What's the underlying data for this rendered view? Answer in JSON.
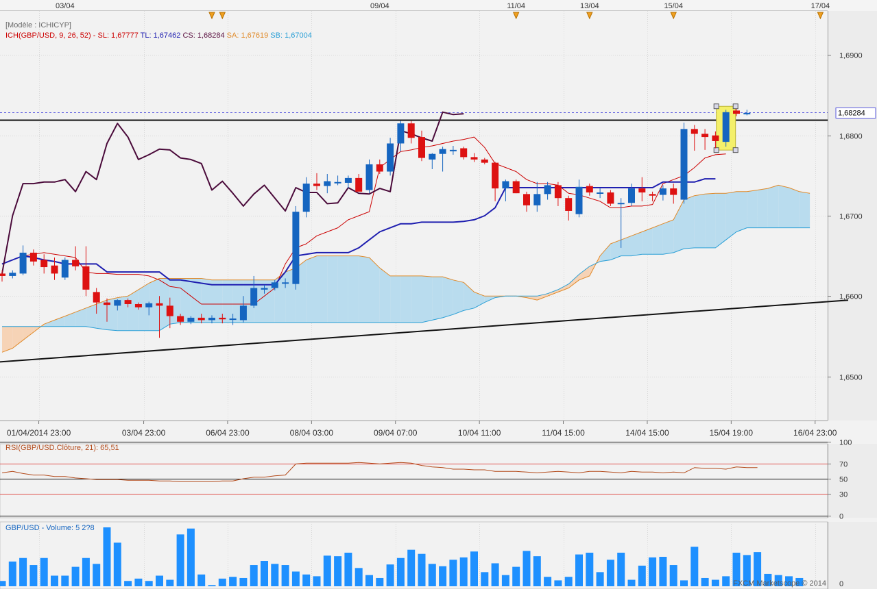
{
  "top_dates": [
    {
      "label": "03/04",
      "slot": 6
    },
    {
      "label": "09/04",
      "slot": 36
    },
    {
      "label": "11/04",
      "slot": 49
    },
    {
      "label": "13/04",
      "slot": 56
    },
    {
      "label": "15/04",
      "slot": 64
    },
    {
      "label": "17/04",
      "slot": 78
    }
  ],
  "event_marker_slots": [
    20,
    21,
    49,
    56,
    64,
    78
  ],
  "main_panel": {
    "model_label": "[Modèle : ICHICYP]",
    "legend": [
      {
        "text": "ICH(GBP/USD, 9, 26, 52) -",
        "color": "#cc0000"
      },
      {
        "text": "SL: 1,67777",
        "color": "#cc0000"
      },
      {
        "text": "TL: 1,67462",
        "color": "#1f1fb0"
      },
      {
        "text": "CS: 1,68284",
        "color": "#5a1040"
      },
      {
        "text": "SA: 1,67619",
        "color": "#e08a2a"
      },
      {
        "text": "SB: 1,67004",
        "color": "#2a9fd6"
      }
    ],
    "price_ticks": [
      "1,6900",
      "1,6800",
      "1,6700",
      "1,6600",
      "1,6500"
    ],
    "price_tick_values": [
      1.69,
      1.68,
      1.67,
      1.66,
      1.65
    ],
    "y_range": [
      1.6445,
      1.6955
    ],
    "last_price_label": "1,68284",
    "last_price": 1.68284
  },
  "x_axis_labels": [
    {
      "label": "01/04/2014 23:00",
      "slot": 3.5
    },
    {
      "label": "03/04 23:00",
      "slot": 13.5
    },
    {
      "label": "06/04 23:00",
      "slot": 21.5
    },
    {
      "label": "08/04 03:00",
      "slot": 29.5
    },
    {
      "label": "09/04 07:00",
      "slot": 37.5
    },
    {
      "label": "10/04 11:00",
      "slot": 45.5
    },
    {
      "label": "11/04 15:00",
      "slot": 53.5
    },
    {
      "label": "14/04 15:00",
      "slot": 61.5
    },
    {
      "label": "15/04 19:00",
      "slot": 69.5
    },
    {
      "label": "16/04 23:00",
      "slot": 77.5
    }
  ],
  "rsi_panel": {
    "title": "RSI(GBP/USD.Clôture, 21): 65,51",
    "ticks": [
      "100",
      "70",
      "50",
      "30",
      "0"
    ],
    "tick_values": [
      100,
      70,
      50,
      30,
      0
    ]
  },
  "volume_panel": {
    "title": "GBP/USD - Volume: 5 2?8",
    "ticks": [
      "0"
    ]
  },
  "watermark": "FXCM Marketscope © 2014",
  "colors": {
    "bull": "#1565c0",
    "bear": "#dd1111",
    "tenkan": "#cc0000",
    "kijun": "#1f1fb0",
    "chikou": "#4a0a3a",
    "span_a": "#e08a2a",
    "span_b": "#2a9fd6",
    "cloud_bull": "#b9dcee",
    "cloud_bear": "#f6d3b6",
    "rsi_line": "#b34a1a",
    "volume_bar": "#1e90ff",
    "highlight": "#f4f06a"
  },
  "chart_data": [
    {
      "type": "candlestick",
      "title": "ICH(GBP/USD, 9, 26, 52)",
      "ylim": [
        1.6445,
        1.6955
      ],
      "candles": [
        {
          "o": 1.6628,
          "h": 1.6632,
          "l": 1.6618,
          "c": 1.6625
        },
        {
          "o": 1.6625,
          "h": 1.6632,
          "l": 1.6622,
          "c": 1.6629
        },
        {
          "o": 1.6628,
          "h": 1.6663,
          "l": 1.6626,
          "c": 1.6654
        },
        {
          "o": 1.6654,
          "h": 1.6658,
          "l": 1.6638,
          "c": 1.6643
        },
        {
          "o": 1.6645,
          "h": 1.6652,
          "l": 1.6628,
          "c": 1.6636
        },
        {
          "o": 1.6638,
          "h": 1.6648,
          "l": 1.662,
          "c": 1.6628
        },
        {
          "o": 1.6623,
          "h": 1.6648,
          "l": 1.662,
          "c": 1.6645
        },
        {
          "o": 1.6645,
          "h": 1.6662,
          "l": 1.6632,
          "c": 1.6637
        },
        {
          "o": 1.6637,
          "h": 1.6662,
          "l": 1.66,
          "c": 1.6608
        },
        {
          "o": 1.6605,
          "h": 1.661,
          "l": 1.6578,
          "c": 1.6592
        },
        {
          "o": 1.6592,
          "h": 1.6597,
          "l": 1.6568,
          "c": 1.6589
        },
        {
          "o": 1.6588,
          "h": 1.6596,
          "l": 1.6582,
          "c": 1.6595
        },
        {
          "o": 1.6595,
          "h": 1.6597,
          "l": 1.6586,
          "c": 1.659
        },
        {
          "o": 1.659,
          "h": 1.6592,
          "l": 1.6583,
          "c": 1.6586
        },
        {
          "o": 1.6586,
          "h": 1.6593,
          "l": 1.6576,
          "c": 1.6591
        },
        {
          "o": 1.6591,
          "h": 1.66,
          "l": 1.6548,
          "c": 1.6588
        },
        {
          "o": 1.6588,
          "h": 1.6598,
          "l": 1.656,
          "c": 1.6575
        },
        {
          "o": 1.6575,
          "h": 1.6578,
          "l": 1.6564,
          "c": 1.6568
        },
        {
          "o": 1.6568,
          "h": 1.6575,
          "l": 1.6565,
          "c": 1.6573
        },
        {
          "o": 1.6573,
          "h": 1.6578,
          "l": 1.6566,
          "c": 1.657
        },
        {
          "o": 1.657,
          "h": 1.6576,
          "l": 1.6566,
          "c": 1.6573
        },
        {
          "o": 1.6573,
          "h": 1.6578,
          "l": 1.6566,
          "c": 1.6571
        },
        {
          "o": 1.6571,
          "h": 1.6578,
          "l": 1.6564,
          "c": 1.6572
        },
        {
          "o": 1.657,
          "h": 1.66,
          "l": 1.6567,
          "c": 1.6588
        },
        {
          "o": 1.6588,
          "h": 1.6625,
          "l": 1.6585,
          "c": 1.661
        },
        {
          "o": 1.6608,
          "h": 1.6614,
          "l": 1.6603,
          "c": 1.661
        },
        {
          "o": 1.661,
          "h": 1.662,
          "l": 1.6607,
          "c": 1.6617
        },
        {
          "o": 1.6617,
          "h": 1.6622,
          "l": 1.661,
          "c": 1.6617
        },
        {
          "o": 1.6615,
          "h": 1.6712,
          "l": 1.6608,
          "c": 1.6705
        },
        {
          "o": 1.6705,
          "h": 1.6748,
          "l": 1.6698,
          "c": 1.674
        },
        {
          "o": 1.674,
          "h": 1.6753,
          "l": 1.6732,
          "c": 1.6737
        },
        {
          "o": 1.6737,
          "h": 1.6752,
          "l": 1.6728,
          "c": 1.6743
        },
        {
          "o": 1.6742,
          "h": 1.675,
          "l": 1.6738,
          "c": 1.6742
        },
        {
          "o": 1.6741,
          "h": 1.675,
          "l": 1.6734,
          "c": 1.6747
        },
        {
          "o": 1.6747,
          "h": 1.6752,
          "l": 1.6734,
          "c": 1.673
        },
        {
          "o": 1.6732,
          "h": 1.677,
          "l": 1.6728,
          "c": 1.6764
        },
        {
          "o": 1.6764,
          "h": 1.677,
          "l": 1.6752,
          "c": 1.6755
        },
        {
          "o": 1.6755,
          "h": 1.6797,
          "l": 1.675,
          "c": 1.679
        },
        {
          "o": 1.679,
          "h": 1.6818,
          "l": 1.678,
          "c": 1.6815
        },
        {
          "o": 1.6815,
          "h": 1.6818,
          "l": 1.679,
          "c": 1.6797
        },
        {
          "o": 1.6798,
          "h": 1.6806,
          "l": 1.6768,
          "c": 1.6772
        },
        {
          "o": 1.677,
          "h": 1.6778,
          "l": 1.6758,
          "c": 1.6777
        },
        {
          "o": 1.6777,
          "h": 1.6786,
          "l": 1.6755,
          "c": 1.6783
        },
        {
          "o": 1.6782,
          "h": 1.6787,
          "l": 1.6776,
          "c": 1.6782
        },
        {
          "o": 1.6784,
          "h": 1.6786,
          "l": 1.677,
          "c": 1.6773
        },
        {
          "o": 1.6773,
          "h": 1.6778,
          "l": 1.6767,
          "c": 1.677
        },
        {
          "o": 1.677,
          "h": 1.6772,
          "l": 1.6764,
          "c": 1.6766
        },
        {
          "o": 1.6766,
          "h": 1.6767,
          "l": 1.6718,
          "c": 1.6734
        },
        {
          "o": 1.6734,
          "h": 1.6745,
          "l": 1.6718,
          "c": 1.6743
        },
        {
          "o": 1.6743,
          "h": 1.6745,
          "l": 1.6728,
          "c": 1.6728
        },
        {
          "o": 1.6727,
          "h": 1.673,
          "l": 1.6705,
          "c": 1.6713
        },
        {
          "o": 1.6713,
          "h": 1.6742,
          "l": 1.6705,
          "c": 1.6727
        },
        {
          "o": 1.6727,
          "h": 1.6742,
          "l": 1.672,
          "c": 1.6738
        },
        {
          "o": 1.6738,
          "h": 1.6742,
          "l": 1.6712,
          "c": 1.6722
        },
        {
          "o": 1.6722,
          "h": 1.6725,
          "l": 1.6694,
          "c": 1.6706
        },
        {
          "o": 1.6702,
          "h": 1.6745,
          "l": 1.6698,
          "c": 1.6736
        },
        {
          "o": 1.6737,
          "h": 1.674,
          "l": 1.6725,
          "c": 1.6729
        },
        {
          "o": 1.6729,
          "h": 1.6734,
          "l": 1.6722,
          "c": 1.6729
        },
        {
          "o": 1.6729,
          "h": 1.6732,
          "l": 1.6712,
          "c": 1.6715
        },
        {
          "o": 1.6715,
          "h": 1.6722,
          "l": 1.666,
          "c": 1.6716
        },
        {
          "o": 1.6716,
          "h": 1.674,
          "l": 1.6712,
          "c": 1.6734
        },
        {
          "o": 1.6734,
          "h": 1.6748,
          "l": 1.6718,
          "c": 1.6729
        },
        {
          "o": 1.6727,
          "h": 1.673,
          "l": 1.6718,
          "c": 1.6725
        },
        {
          "o": 1.6726,
          "h": 1.6738,
          "l": 1.6719,
          "c": 1.6734
        },
        {
          "o": 1.6734,
          "h": 1.674,
          "l": 1.6715,
          "c": 1.6726
        },
        {
          "o": 1.672,
          "h": 1.6816,
          "l": 1.6715,
          "c": 1.6808
        },
        {
          "o": 1.6808,
          "h": 1.6813,
          "l": 1.6781,
          "c": 1.6802
        },
        {
          "o": 1.6802,
          "h": 1.6808,
          "l": 1.6782,
          "c": 1.6798
        },
        {
          "o": 1.68,
          "h": 1.6805,
          "l": 1.6784,
          "c": 1.6793
        },
        {
          "o": 1.6792,
          "h": 1.6832,
          "l": 1.6786,
          "c": 1.6829
        },
        {
          "o": 1.6831,
          "h": 1.6833,
          "l": 1.6824,
          "c": 1.6827
        },
        {
          "o": 1.6828,
          "h": 1.6832,
          "l": 1.6825,
          "c": 1.6828
        }
      ],
      "tenkan_sen": [
        1.664,
        1.6645,
        1.665,
        1.6652,
        1.6654,
        1.6652,
        1.665,
        1.6648,
        1.663,
        1.6628,
        1.6628,
        1.6627,
        1.6627,
        1.6627,
        1.6625,
        1.662,
        1.6612,
        1.661,
        1.66,
        1.659,
        1.659,
        1.659,
        1.659,
        1.659,
        1.659,
        1.66,
        1.661,
        1.664,
        1.666,
        1.6665,
        1.6675,
        1.668,
        1.6685,
        1.6695,
        1.67,
        1.6705,
        1.676,
        1.677,
        1.678,
        1.6782,
        1.6785,
        1.6787,
        1.679,
        1.6793,
        1.6795,
        1.6798,
        1.6785,
        1.6765,
        1.676,
        1.6755,
        1.6745,
        1.674,
        1.674,
        1.6738,
        1.6728,
        1.6726,
        1.6722,
        1.6718,
        1.671,
        1.671,
        1.6712,
        1.6712,
        1.6714,
        1.674,
        1.6745,
        1.675,
        1.676,
        1.6772,
        1.6776,
        1.6777
      ],
      "kijun_sen": [
        1.664,
        1.6645,
        1.665,
        1.6648,
        1.6645,
        1.6643,
        1.664,
        1.664,
        1.664,
        1.664,
        1.663,
        1.663,
        1.663,
        1.663,
        1.663,
        1.663,
        1.662,
        1.662,
        1.6618,
        1.6616,
        1.6614,
        1.6614,
        1.6614,
        1.6614,
        1.6614,
        1.6614,
        1.6614,
        1.663,
        1.665,
        1.6652,
        1.6654,
        1.6654,
        1.6654,
        1.6654,
        1.666,
        1.667,
        1.668,
        1.6685,
        1.669,
        1.669,
        1.6692,
        1.6692,
        1.6692,
        1.6692,
        1.6693,
        1.6695,
        1.67,
        1.671,
        1.6735,
        1.6735,
        1.6735,
        1.6735,
        1.6735,
        1.6735,
        1.6735,
        1.6735,
        1.6735,
        1.6735,
        1.6735,
        1.6735,
        1.6735,
        1.6735,
        1.6735,
        1.6742,
        1.6742,
        1.6742,
        1.6742,
        1.6746,
        1.6746
      ],
      "chikou_span": [
        1.6628,
        1.67,
        1.674,
        1.674,
        1.6742,
        1.6742,
        1.6745,
        1.673,
        1.6755,
        1.6745,
        1.679,
        1.6815,
        1.6798,
        1.677,
        1.6776,
        1.6783,
        1.6782,
        1.6772,
        1.677,
        1.6765,
        1.6732,
        1.6743,
        1.6728,
        1.6712,
        1.6727,
        1.6738,
        1.6722,
        1.6706,
        1.6735,
        1.6729,
        1.6729,
        1.6715,
        1.6716,
        1.6735,
        1.6728,
        1.6727,
        1.6734,
        1.673,
        1.6806,
        1.6802,
        1.6797,
        1.6793,
        1.6829,
        1.6826,
        1.6827
      ],
      "senkou_span_a": [
        1.653,
        1.6535,
        1.6545,
        1.6555,
        1.6565,
        1.657,
        1.6575,
        1.658,
        1.6585,
        1.659,
        1.6595,
        1.6598,
        1.66,
        1.6608,
        1.6616,
        1.6622,
        1.6622,
        1.6622,
        1.6622,
        1.6622,
        1.662,
        1.662,
        1.662,
        1.662,
        1.662,
        1.662,
        1.662,
        1.663,
        1.6635,
        1.6645,
        1.665,
        1.665,
        1.665,
        1.665,
        1.665,
        1.6648,
        1.6635,
        1.6625,
        1.6625,
        1.6625,
        1.6625,
        1.6624,
        1.6624,
        1.662,
        1.6617,
        1.6605,
        1.66,
        1.66,
        1.66,
        1.66,
        1.6598,
        1.6595,
        1.66,
        1.6605,
        1.661,
        1.662,
        1.6625,
        1.665,
        1.6665,
        1.667,
        1.6675,
        1.668,
        1.6685,
        1.669,
        1.6695,
        1.672,
        1.6725,
        1.6727,
        1.6728,
        1.6728,
        1.673,
        1.673,
        1.6732,
        1.6734,
        1.6738,
        1.6735,
        1.673,
        1.6728
      ],
      "senkou_span_b": [
        1.6562,
        1.6562,
        1.6562,
        1.6562,
        1.6562,
        1.6562,
        1.6562,
        1.6562,
        1.6562,
        1.656,
        1.6558,
        1.6557,
        1.6557,
        1.6557,
        1.6557,
        1.6557,
        1.6565,
        1.6567,
        1.6567,
        1.6567,
        1.6567,
        1.6567,
        1.6567,
        1.6567,
        1.6567,
        1.6567,
        1.6567,
        1.6567,
        1.6567,
        1.6567,
        1.6567,
        1.6567,
        1.6567,
        1.6567,
        1.6567,
        1.6567,
        1.6567,
        1.6567,
        1.6567,
        1.6567,
        1.6567,
        1.657,
        1.6573,
        1.6577,
        1.6582,
        1.6585,
        1.6592,
        1.6598,
        1.66,
        1.66,
        1.66,
        1.66,
        1.6603,
        1.6608,
        1.6615,
        1.6627,
        1.6637,
        1.6643,
        1.6645,
        1.665,
        1.665,
        1.6652,
        1.6652,
        1.6652,
        1.6654,
        1.6659,
        1.666,
        1.666,
        1.666,
        1.667,
        1.668,
        1.6685,
        1.6685,
        1.6685,
        1.6685,
        1.6685,
        1.6685,
        1.6685
      ],
      "horizontal_lines": [
        {
          "name": "resistance",
          "y": 1.6819
        }
      ],
      "trend_lines": [
        {
          "name": "support",
          "from": {
            "slot": 0,
            "y": 1.6518
          },
          "to": {
            "slot": 86,
            "y": 1.66
          }
        }
      ]
    },
    {
      "type": "line",
      "title": "RSI(GBP/USD.Clôture, 21)",
      "ylim": [
        0,
        100
      ],
      "levels": [
        70,
        50,
        30
      ],
      "values": [
        58,
        60,
        57,
        55,
        55,
        53,
        53,
        51,
        50,
        49,
        49,
        49,
        48,
        48,
        48,
        47,
        47,
        46,
        46,
        46,
        46,
        47,
        47,
        50,
        52,
        52,
        54,
        55,
        70,
        71,
        71,
        71,
        71,
        71,
        72,
        71,
        70,
        71,
        72,
        71,
        68,
        66,
        65,
        63,
        63,
        62,
        62,
        60,
        60,
        60,
        59,
        58,
        59,
        60,
        59,
        58,
        60,
        60,
        59,
        58,
        60,
        59,
        59,
        58,
        59,
        58,
        65,
        64,
        64,
        63,
        66,
        65,
        65
      ]
    },
    {
      "type": "bar",
      "title": "GBP/USD - Volume",
      "ylim": [
        0,
        100
      ],
      "values": [
        9,
        42,
        48,
        36,
        48,
        18,
        18,
        33,
        48,
        38,
        100,
        74,
        9,
        13,
        9,
        18,
        11,
        88,
        98,
        20,
        2,
        13,
        16,
        14,
        36,
        43,
        38,
        36,
        25,
        20,
        17,
        52,
        51,
        57,
        31,
        19,
        14,
        37,
        48,
        62,
        55,
        38,
        34,
        45,
        49,
        59,
        24,
        39,
        19,
        33,
        60,
        51,
        16,
        10,
        16,
        54,
        57,
        24,
        45,
        57,
        11,
        35,
        49,
        50,
        36,
        10,
        67,
        14,
        11,
        17,
        57,
        53,
        58,
        21,
        19,
        17,
        14
      ]
    }
  ]
}
